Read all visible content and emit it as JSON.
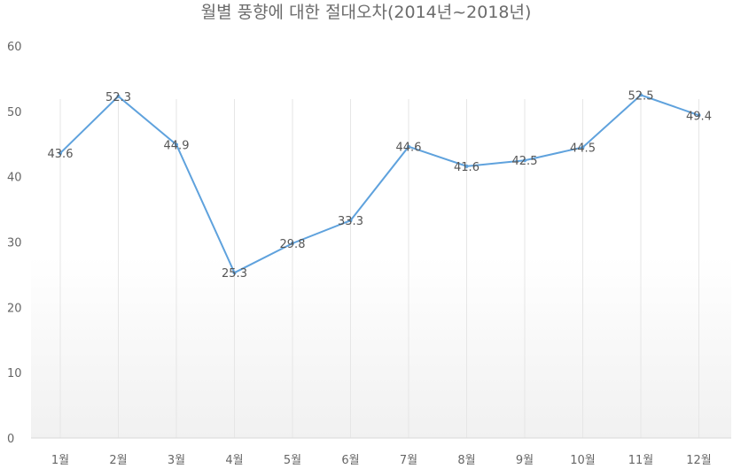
{
  "chart_data": {
    "type": "line",
    "title": "월별 풍향에 대한 절대오차(2014년~2018년)",
    "categories": [
      "1월",
      "2월",
      "3월",
      "4월",
      "5월",
      "6월",
      "7월",
      "8월",
      "9월",
      "10월",
      "11월",
      "12월"
    ],
    "series": [
      {
        "values": [
          43.6,
          52.3,
          44.9,
          25.3,
          29.8,
          33.3,
          44.6,
          41.6,
          42.5,
          44.5,
          52.5,
          49.4
        ]
      }
    ],
    "data_labels": [
      "43.6",
      "52.3",
      "44.9",
      "25.3",
      "29.8",
      "33.3",
      "44.6",
      "41.6",
      "42.5",
      "44.5",
      "52.5",
      "49.4"
    ],
    "ylim": [
      0,
      60
    ],
    "yticks": [
      0,
      10,
      20,
      30,
      40,
      50,
      60
    ],
    "ytick_labels": [
      "0",
      "10",
      "20",
      "30",
      "40",
      "50",
      "60"
    ],
    "grid": "vertical",
    "legend": "none",
    "colors": {
      "line": "#5fa2dd"
    }
  }
}
